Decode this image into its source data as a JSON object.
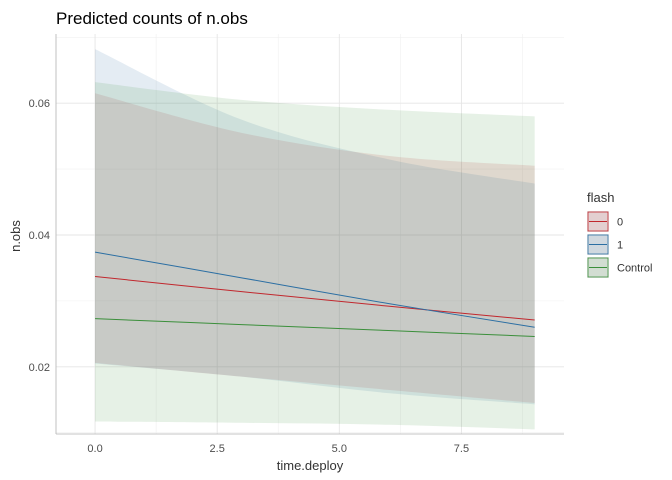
{
  "chart_data": {
    "type": "line",
    "title": "Predicted counts of n.obs",
    "xlabel": "time.deploy",
    "ylabel": "n.obs",
    "xlim": [
      -0.8,
      9.6
    ],
    "ylim": [
      0.0098,
      0.0705
    ],
    "x_ticks": [
      0.0,
      2.5,
      5.0,
      7.5
    ],
    "x_tick_labels": [
      "0.0",
      "2.5",
      "5.0",
      "7.5"
    ],
    "y_ticks": [
      0.02,
      0.04,
      0.06
    ],
    "y_tick_labels": [
      "0.02",
      "0.04",
      "0.06"
    ],
    "grid": true,
    "legend": {
      "title": "flash",
      "position": "right",
      "entries": [
        "0",
        "1",
        "Control"
      ]
    },
    "series": [
      {
        "name": "0",
        "color": "#c1272d",
        "x": [
          0,
          3,
          6,
          9
        ],
        "y": [
          0.0337,
          0.0314,
          0.0292,
          0.0271
        ],
        "ci_upper": [
          0.0615,
          0.0555,
          0.052,
          0.0505
        ],
        "ci_lower": [
          0.0206,
          0.0185,
          0.0165,
          0.0145
        ]
      },
      {
        "name": "1",
        "color": "#2c6fa3",
        "x": [
          0,
          3,
          6,
          9
        ],
        "y": [
          0.0374,
          0.0335,
          0.0296,
          0.026
        ],
        "ci_upper": [
          0.0682,
          0.0575,
          0.0515,
          0.0478
        ],
        "ci_lower": [
          0.0205,
          0.0185,
          0.016,
          0.0143
        ]
      },
      {
        "name": "Control",
        "color": "#3b8f3b",
        "x": [
          0,
          3,
          6,
          9
        ],
        "y": [
          0.0273,
          0.0264,
          0.0255,
          0.0246
        ],
        "ci_upper": [
          0.0632,
          0.0605,
          0.059,
          0.058
        ],
        "ci_lower": [
          0.0117,
          0.0115,
          0.0112,
          0.0105
        ]
      }
    ]
  }
}
